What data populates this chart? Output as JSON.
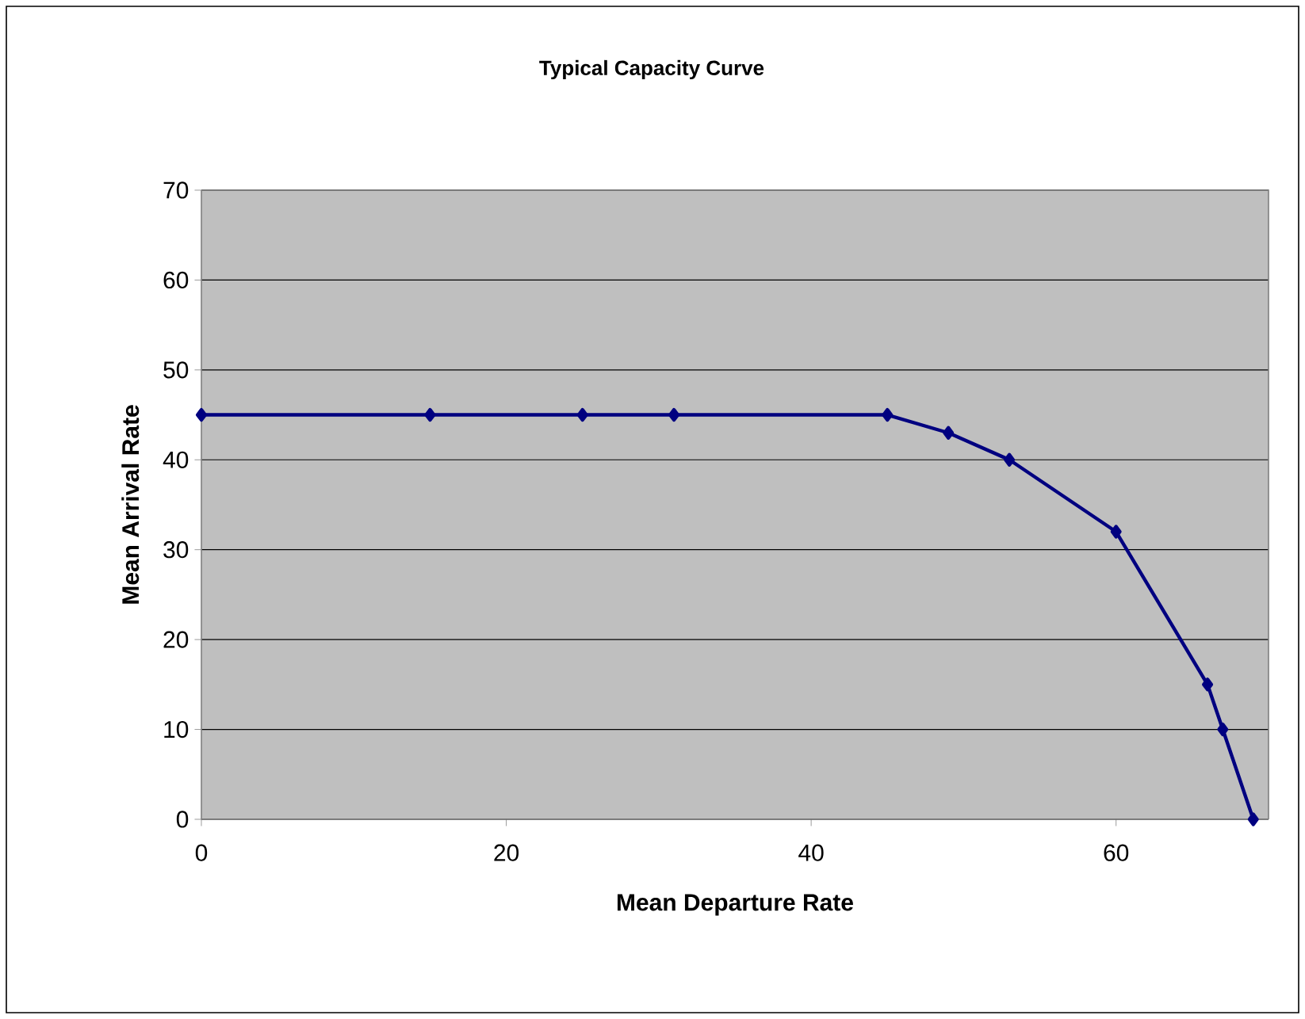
{
  "chart_data": {
    "type": "line",
    "title": "Typical Capacity Curve",
    "xlabel": "Mean Departure Rate",
    "ylabel": "Mean Arrival Rate",
    "x": [
      0,
      15,
      25,
      31,
      45,
      49,
      53,
      60,
      66,
      67,
      69
    ],
    "series": [
      {
        "color": "#000080",
        "values": [
          45,
          45,
          45,
          45,
          45,
          43,
          40,
          32,
          15,
          10,
          0
        ]
      }
    ],
    "xlim": [
      0,
      70
    ],
    "xticks": [
      0,
      20,
      40,
      60
    ],
    "ylim": [
      0,
      70
    ],
    "yticks": [
      0,
      10,
      20,
      30,
      40,
      50,
      60,
      70
    ],
    "grid": "y",
    "marker": "diamond",
    "line_style": "solid"
  }
}
